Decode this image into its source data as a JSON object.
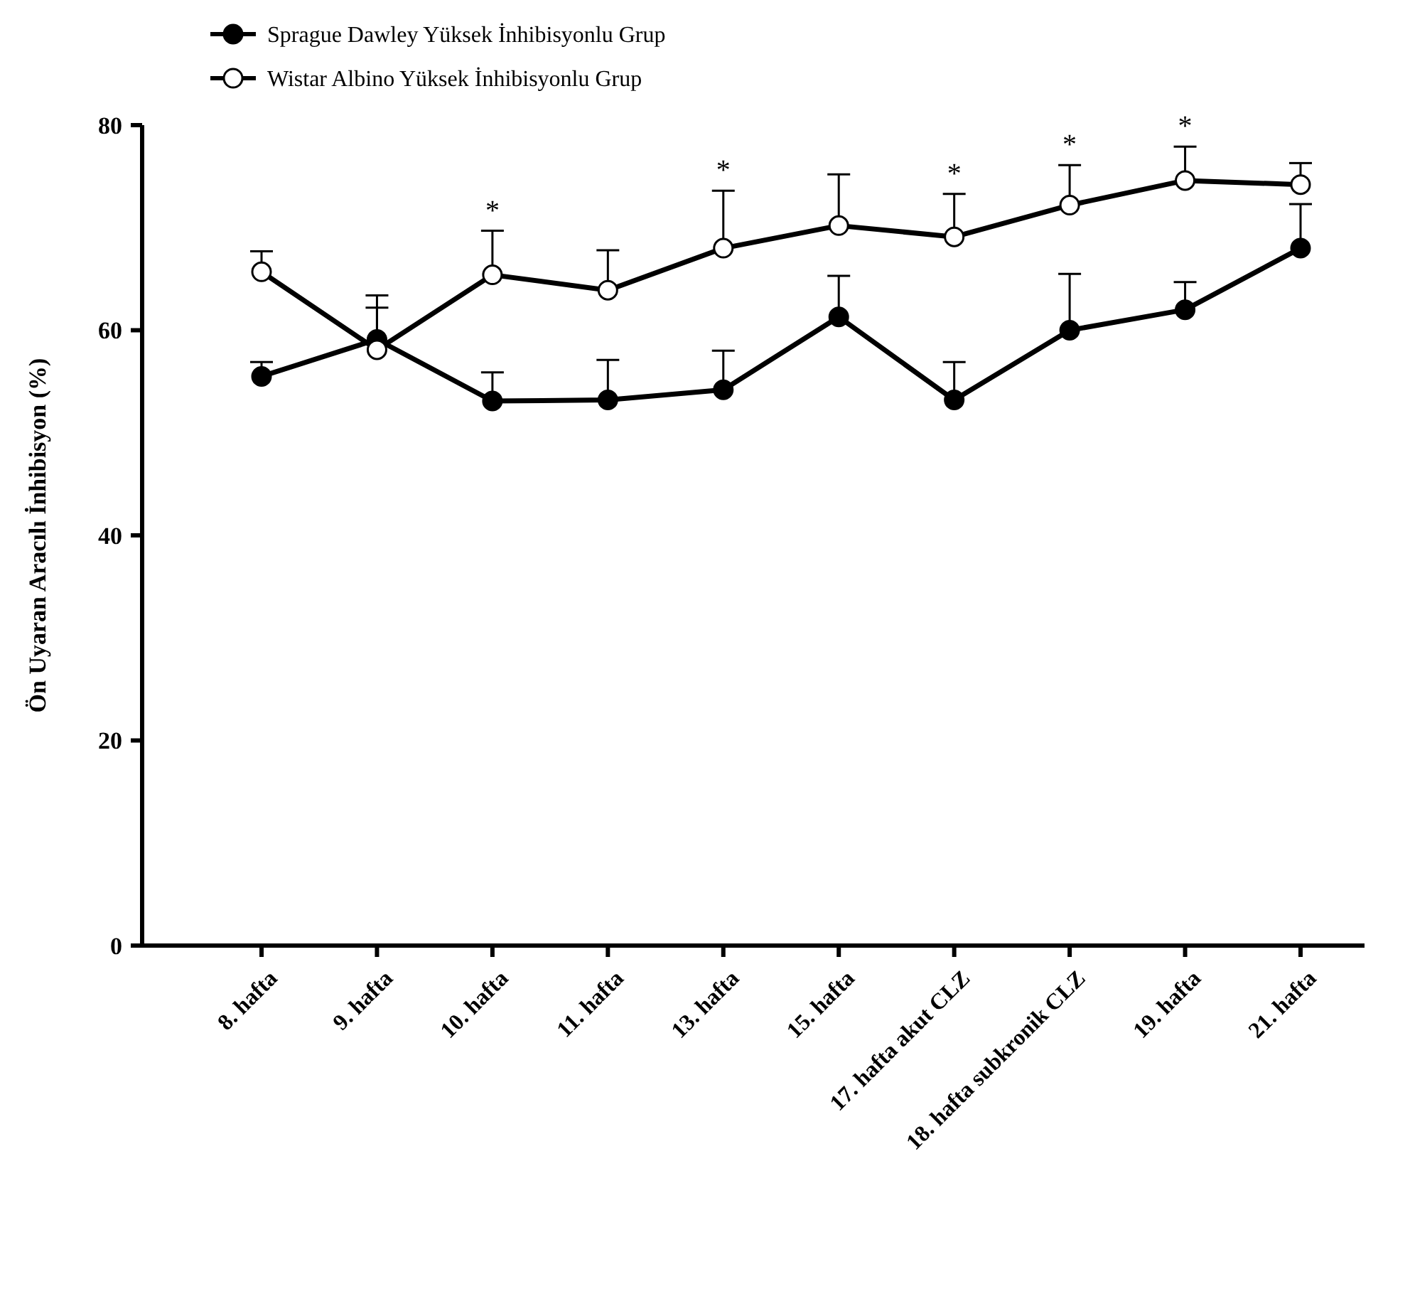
{
  "chart_data": {
    "type": "line",
    "ylabel": "Ön Uyaran Aracılı İnhibisyon (%)",
    "categories": [
      "8. hafta",
      "9. hafta",
      "10. hafta",
      "11. hafta",
      "13. hafta",
      "15. hafta",
      "17. hafta akut CLZ",
      "18. hafta subkronik CLZ",
      "19. hafta",
      "21. hafta"
    ],
    "series": [
      {
        "name": "Sprague Dawley Yüksek İnhibisyonlu Grup",
        "color": "#000000",
        "marker": "circle",
        "values": [
          55.5,
          59.1,
          53.1,
          53.2,
          54.2,
          61.3,
          53.2,
          60.0,
          62.0,
          68.0
        ],
        "errors": [
          [
            55.5,
            56.9
          ],
          [
            59.1,
            63.4
          ],
          [
            53.1,
            55.9
          ],
          [
            53.2,
            57.1
          ],
          [
            54.2,
            58.0
          ],
          [
            61.3,
            65.3
          ],
          [
            53.2,
            56.9
          ],
          [
            60.0,
            65.5
          ],
          [
            62.0,
            64.7
          ],
          [
            68.0,
            72.3
          ]
        ]
      },
      {
        "name": "Wistar Albino Yüksek İnhibisyonlu Grup",
        "color": "#ffffff",
        "marker": "circle",
        "values": [
          65.7,
          58.1,
          65.4,
          63.9,
          68.0,
          70.2,
          69.1,
          72.2,
          74.6,
          74.2
        ],
        "errors": [
          [
            65.7,
            67.7
          ],
          [
            58.1,
            62.2
          ],
          [
            65.4,
            69.7
          ],
          [
            63.9,
            67.8
          ],
          [
            68.0,
            73.6
          ],
          [
            70.2,
            75.2
          ],
          [
            69.1,
            73.3
          ],
          [
            72.2,
            76.1
          ],
          [
            74.6,
            77.9
          ],
          [
            74.2,
            76.3
          ]
        ]
      }
    ],
    "ylim": [
      0,
      80
    ],
    "yticks": [
      0,
      20,
      40,
      60,
      80
    ],
    "grid": false,
    "legend": "top left",
    "line_style": "solid",
    "annotations": [
      {
        "text": "*",
        "x": "10. hafta",
        "y": 69.7
      },
      {
        "text": "*",
        "x": "13. hafta",
        "y": 73.6
      },
      {
        "text": "*",
        "x": "17. hafta akut CLZ",
        "y": 73.3
      },
      {
        "text": "*",
        "x": "18. hafta subkronik CLZ",
        "y": 76.1
      },
      {
        "text": "*",
        "x": "19. hafta",
        "y": 77.9
      }
    ]
  }
}
